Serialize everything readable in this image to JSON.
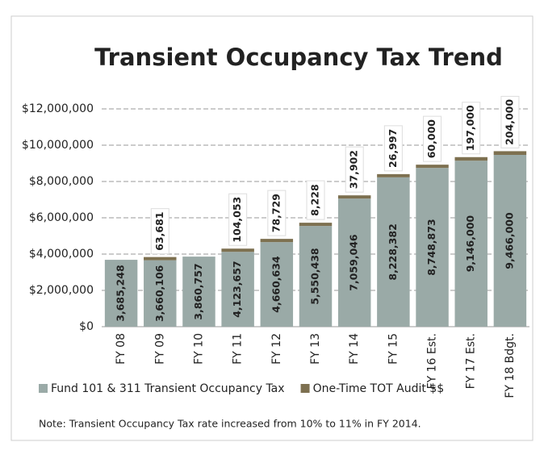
{
  "chart_data": {
    "type": "stacked_bar",
    "title": "Transient Occupancy Tax Trend",
    "categories": [
      "FY 08",
      "FY 09",
      "FY 10",
      "FY 11",
      "FY 12",
      "FY 13",
      "FY 14",
      "FY 15",
      "FY 16 Est.",
      "FY 17 Est.",
      "FY 18 Bdgt."
    ],
    "series": [
      {
        "name": "Fund 101 & 311 Transient Occupancy Tax",
        "color": "#9aaaa7",
        "values": [
          3685248,
          3660106,
          3860757,
          4123657,
          4660634,
          5550438,
          7059046,
          8228382,
          8748873,
          9146000,
          9466000
        ],
        "value_labels": [
          "3,685,248",
          "3,660,106",
          "3,860,757",
          "4,123,657",
          "4,660,634",
          "5,550,438",
          "7,059,046",
          "8,228,382",
          "8,748,873",
          "9,146,000",
          "9,466,000"
        ]
      },
      {
        "name": "One-Time TOT Audit $$",
        "color": "#7d7050",
        "values": [
          null,
          63681,
          null,
          104053,
          78729,
          8228,
          37902,
          26997,
          60000,
          197000,
          204000
        ],
        "value_labels": [
          null,
          "63,681",
          null,
          "104,053",
          "78,729",
          "8,228",
          "37,902",
          "26,997",
          "60,000",
          "197,000",
          "204,000"
        ]
      }
    ],
    "ylim": [
      0,
      13000000
    ],
    "yticks": [
      {
        "value": 0,
        "label": "$0"
      },
      {
        "value": 2000000,
        "label": "$2,000,000"
      },
      {
        "value": 4000000,
        "label": "$4,000,000"
      },
      {
        "value": 6000000,
        "label": "$6,000,000"
      },
      {
        "value": 8000000,
        "label": "$8,000,000"
      },
      {
        "value": 10000000,
        "label": "$10,000,000"
      },
      {
        "value": 12000000,
        "label": "$12,000,000"
      }
    ],
    "grid": true,
    "note": "Note:  Transient Occupancy Tax rate increased from 10% to 11% in FY 2014."
  }
}
